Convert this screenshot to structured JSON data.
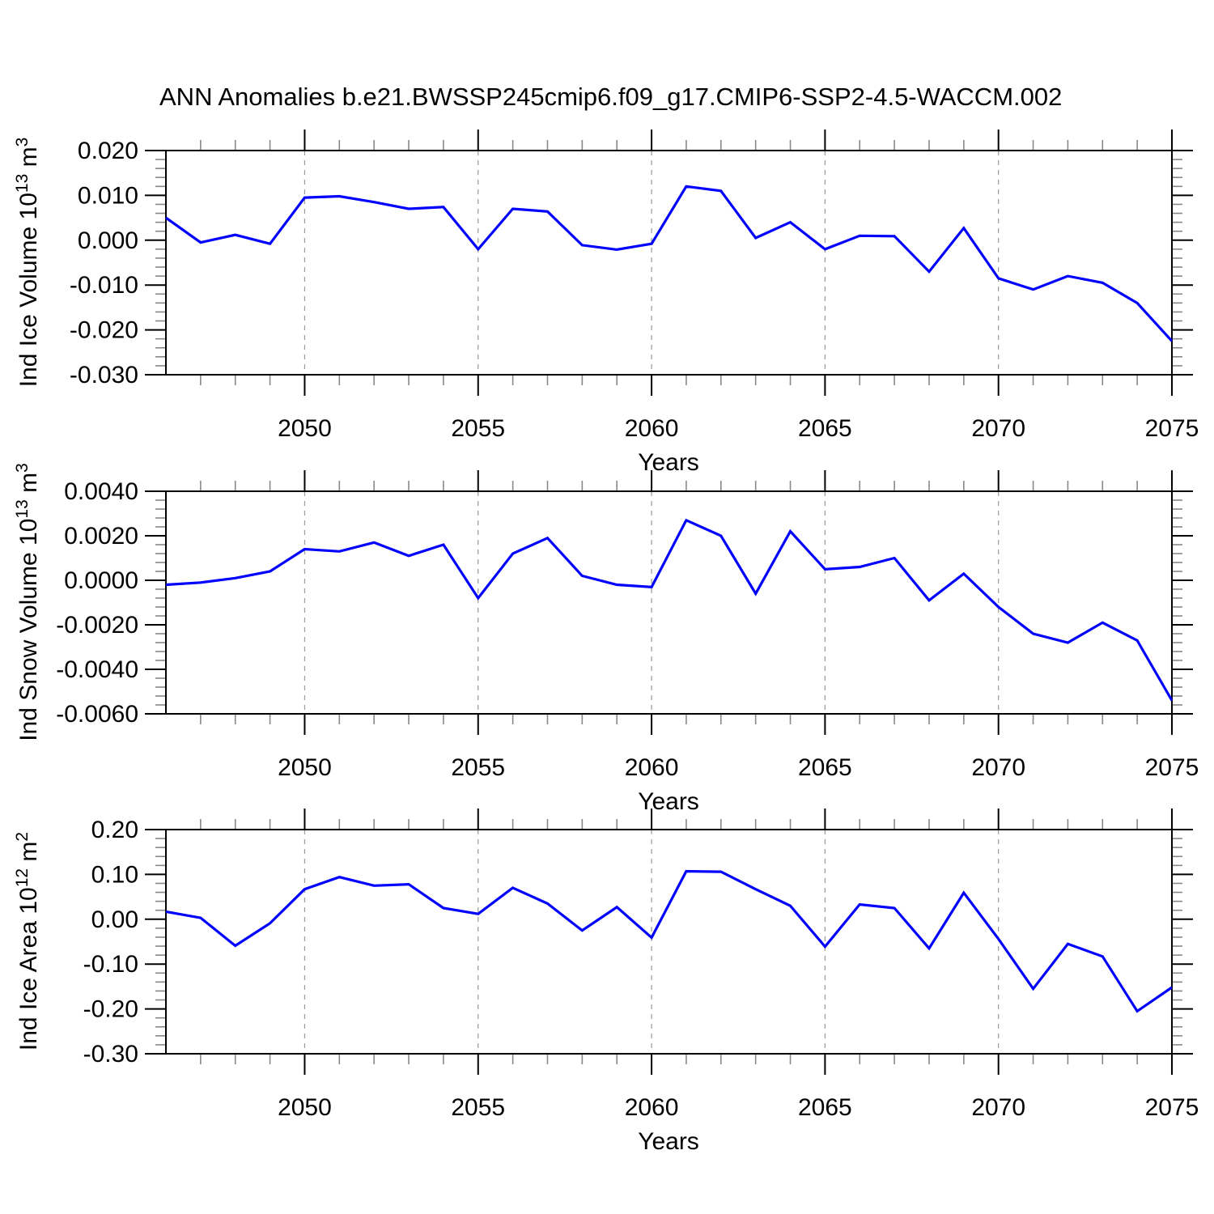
{
  "page": {
    "title": "ANN Anomalies b.e21.BWSSP245cmip6.f09_g17.CMIP6-SSP2-4.5-WACCM.002",
    "background_color": "#ffffff",
    "line_color": "#0000ff",
    "axis_color": "#000000",
    "minor_tick_color": "#888888",
    "grid_color": "#999999"
  },
  "chart_data": [
    {
      "type": "line",
      "id": "ind-ice-volume",
      "series_name": "Ind Ice Volume anomaly",
      "ylabel_parts": {
        "pre": "Ind Ice Volume 10",
        "exp": "13",
        "mid": " m",
        "exp2": "3"
      },
      "xlabel": "Years",
      "xlim": [
        2046,
        2075
      ],
      "ylim": [
        -0.03,
        0.02
      ],
      "y_tick_labels": [
        "0.020",
        "0.010",
        "0.000",
        "-0.010",
        "-0.020",
        "-0.030"
      ],
      "y_tick_values": [
        0.02,
        0.01,
        0.0,
        -0.01,
        -0.02,
        -0.03
      ],
      "y_minor_step": 0.002,
      "x_tick_labels": [
        "2050",
        "2055",
        "2060",
        "2065",
        "2070",
        "2075"
      ],
      "x_tick_values": [
        2050,
        2055,
        2060,
        2065,
        2070,
        2075
      ],
      "x_minor_step": 1,
      "grid": "vertical-dashed-at-major-years",
      "years": [
        2046,
        2047,
        2048,
        2049,
        2050,
        2051,
        2052,
        2053,
        2054,
        2055,
        2056,
        2057,
        2058,
        2059,
        2060,
        2061,
        2062,
        2063,
        2064,
        2065,
        2066,
        2067,
        2068,
        2069,
        2070,
        2071,
        2072,
        2073,
        2074,
        2075
      ],
      "values": [
        0.005,
        -0.0005,
        0.0012,
        -0.0008,
        0.0095,
        0.0098,
        0.0085,
        0.007,
        0.0074,
        -0.002,
        0.007,
        0.0064,
        -0.0011,
        -0.0021,
        -0.0008,
        0.012,
        0.011,
        0.0005,
        0.004,
        -0.002,
        0.001,
        0.0009,
        -0.007,
        0.0027,
        -0.0085,
        -0.011,
        -0.008,
        -0.0095,
        -0.014,
        -0.0225
      ]
    },
    {
      "type": "line",
      "id": "ind-snow-volume",
      "series_name": "Ind Snow Volume anomaly",
      "ylabel_parts": {
        "pre": "Ind Snow Volume 10",
        "exp": "13",
        "mid": " m",
        "exp2": "3"
      },
      "xlabel": "Years",
      "xlim": [
        2046,
        2075
      ],
      "ylim": [
        -0.006,
        0.004
      ],
      "y_tick_labels": [
        "0.0040",
        "0.0020",
        "0.0000",
        "-0.0020",
        "-0.0040",
        "-0.0060"
      ],
      "y_tick_values": [
        0.004,
        0.002,
        0.0,
        -0.002,
        -0.004,
        -0.006
      ],
      "y_minor_step": 0.0004,
      "x_tick_labels": [
        "2050",
        "2055",
        "2060",
        "2065",
        "2070",
        "2075"
      ],
      "x_tick_values": [
        2050,
        2055,
        2060,
        2065,
        2070,
        2075
      ],
      "x_minor_step": 1,
      "grid": "vertical-dashed-at-major-years",
      "years": [
        2046,
        2047,
        2048,
        2049,
        2050,
        2051,
        2052,
        2053,
        2054,
        2055,
        2056,
        2057,
        2058,
        2059,
        2060,
        2061,
        2062,
        2063,
        2064,
        2065,
        2066,
        2067,
        2068,
        2069,
        2070,
        2071,
        2072,
        2073,
        2074,
        2075
      ],
      "values": [
        -0.0002,
        -0.0001,
        0.0001,
        0.0004,
        0.0014,
        0.0013,
        0.0017,
        0.0011,
        0.0016,
        -0.0008,
        0.0012,
        0.0019,
        0.0002,
        -0.0002,
        -0.0003,
        0.0027,
        0.002,
        -0.0006,
        0.0022,
        0.0005,
        0.0006,
        0.001,
        -0.0009,
        0.0003,
        -0.0012,
        -0.0024,
        -0.0028,
        -0.0019,
        -0.0027,
        -0.0054
      ]
    },
    {
      "type": "line",
      "id": "ind-ice-area",
      "series_name": "Ind Ice Area anomaly",
      "ylabel_parts": {
        "pre": "Ind Ice Area 10",
        "exp": "12",
        "mid": " m",
        "exp2": "2"
      },
      "xlabel": "Years",
      "xlim": [
        2046,
        2075
      ],
      "ylim": [
        -0.3,
        0.2
      ],
      "y_tick_labels": [
        "0.20",
        "0.10",
        "0.00",
        "-0.10",
        "-0.20",
        "-0.30"
      ],
      "y_tick_values": [
        0.2,
        0.1,
        0.0,
        -0.1,
        -0.2,
        -0.3
      ],
      "y_minor_step": 0.02,
      "x_tick_labels": [
        "2050",
        "2055",
        "2060",
        "2065",
        "2070",
        "2075"
      ],
      "x_tick_values": [
        2050,
        2055,
        2060,
        2065,
        2070,
        2075
      ],
      "x_minor_step": 1,
      "grid": "vertical-dashed-at-major-years",
      "years": [
        2046,
        2047,
        2048,
        2049,
        2050,
        2051,
        2052,
        2053,
        2054,
        2055,
        2056,
        2057,
        2058,
        2059,
        2060,
        2061,
        2062,
        2063,
        2064,
        2065,
        2066,
        2067,
        2068,
        2069,
        2070,
        2071,
        2072,
        2073,
        2074,
        2075
      ],
      "values": [
        0.017,
        0.003,
        -0.059,
        -0.009,
        0.067,
        0.094,
        0.075,
        0.078,
        0.025,
        0.012,
        0.07,
        0.035,
        -0.025,
        0.027,
        -0.041,
        0.107,
        0.106,
        0.067,
        0.03,
        -0.061,
        0.033,
        0.025,
        -0.065,
        0.059,
        -0.044,
        -0.155,
        -0.055,
        -0.083,
        -0.205,
        -0.152
      ]
    }
  ]
}
